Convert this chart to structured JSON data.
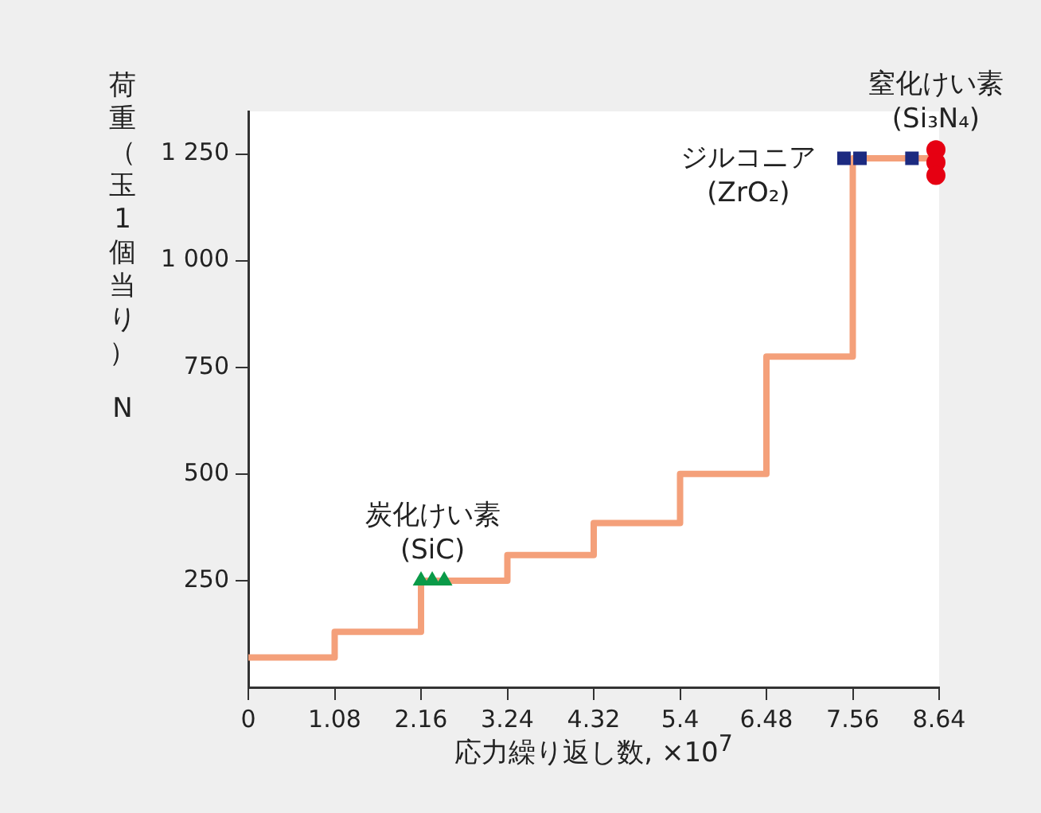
{
  "chart_data": {
    "type": "step",
    "xlabel": "応力繰り返し数, ×10$^{7}$",
    "ylabel": "荷重（玉1個当り） N",
    "xlim": [
      0,
      8.64
    ],
    "xticks": [
      0,
      1.08,
      2.16,
      3.24,
      4.32,
      5.4,
      6.48,
      7.56,
      8.64
    ],
    "ylim": [
      0,
      1350
    ],
    "yticks": [
      250,
      500,
      750,
      {
        "value": 1000,
        "label": "1 000"
      },
      {
        "value": 1250,
        "label": "1 250"
      }
    ],
    "grid": false,
    "legend": false,
    "series": [
      {
        "type": "step",
        "color": "#f4a07a",
        "marker": "none",
        "x": [
          0,
          1.08,
          2.16,
          3.24,
          4.32,
          5.4,
          6.48,
          7.56,
          8.64
        ],
        "values": [
          70,
          130,
          250,
          310,
          385,
          500,
          775,
          1240,
          1240
        ]
      },
      {
        "type": "scatter",
        "name": "炭化けい素 (SiC)",
        "color": "#0a9a48",
        "marker": "triangle",
        "x": [
          2.16,
          2.3,
          2.45
        ],
        "values": [
          250,
          250,
          250
        ]
      },
      {
        "type": "scatter",
        "name": "ジルコニア (ZrO₂)",
        "color": "#1c2a80",
        "marker": "square",
        "x": [
          7.45,
          7.65,
          8.3
        ],
        "values": [
          1240,
          1240,
          1240
        ]
      },
      {
        "type": "scatter",
        "name": "窒化けい素 (Si₃N₄)",
        "color": "#e60012",
        "marker": "circle",
        "x": [
          8.6,
          8.6,
          8.6
        ],
        "values": [
          1260,
          1230,
          1200
        ]
      }
    ]
  }
}
